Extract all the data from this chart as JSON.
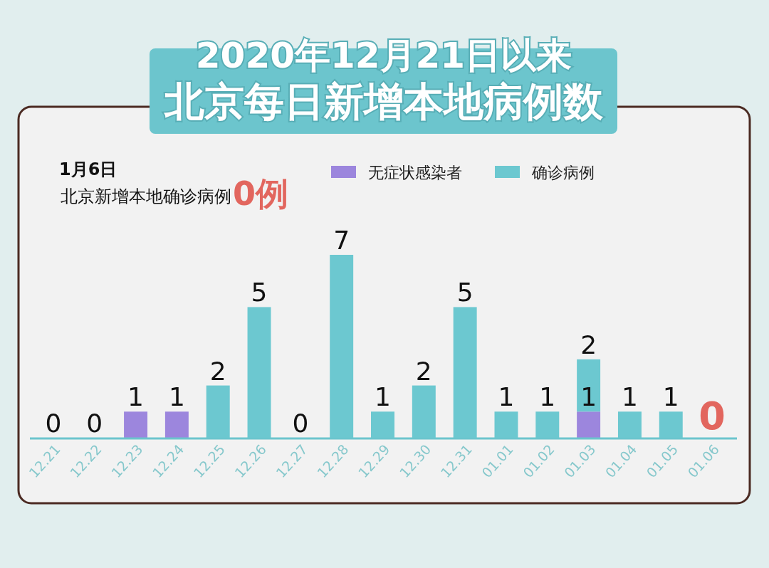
{
  "chart_data": {
    "type": "bar",
    "title": "2020年12月21日以来",
    "subtitle": "北京每日新增本地病例数",
    "categories": [
      "12.21",
      "12.22",
      "12.23",
      "12.24",
      "12.25",
      "12.26",
      "12.27",
      "12.28",
      "12.29",
      "12.30",
      "12.31",
      "01.01",
      "01.02",
      "01.03",
      "01.04",
      "01.05",
      "01.06"
    ],
    "series": [
      {
        "name": "无症状感染者",
        "color": "#9c86dd",
        "values": [
          null,
          null,
          1,
          1,
          null,
          null,
          null,
          null,
          null,
          null,
          null,
          null,
          null,
          1,
          null,
          null,
          null
        ],
        "value_labels": [
          null,
          null,
          "1",
          "1",
          null,
          null,
          null,
          null,
          null,
          null,
          null,
          null,
          null,
          "1",
          null,
          null,
          null
        ]
      },
      {
        "name": "确诊病例",
        "color": "#6cc8d0",
        "values": [
          0,
          0,
          null,
          null,
          2,
          5,
          0,
          7,
          1,
          2,
          5,
          1,
          1,
          2,
          1,
          1,
          0
        ],
        "value_labels": [
          "0",
          "0",
          null,
          null,
          "2",
          "5",
          "0",
          "7",
          "1",
          "2",
          "5",
          "1",
          "1",
          "2",
          "1",
          "1",
          null
        ]
      }
    ],
    "stacked": true,
    "legend": "top right",
    "annotations": [
      "1月6日",
      "北京新增本地确诊病例",
      "0例",
      {
        "text": "0",
        "x": "01.06",
        "y": 0
      }
    ]
  }
}
